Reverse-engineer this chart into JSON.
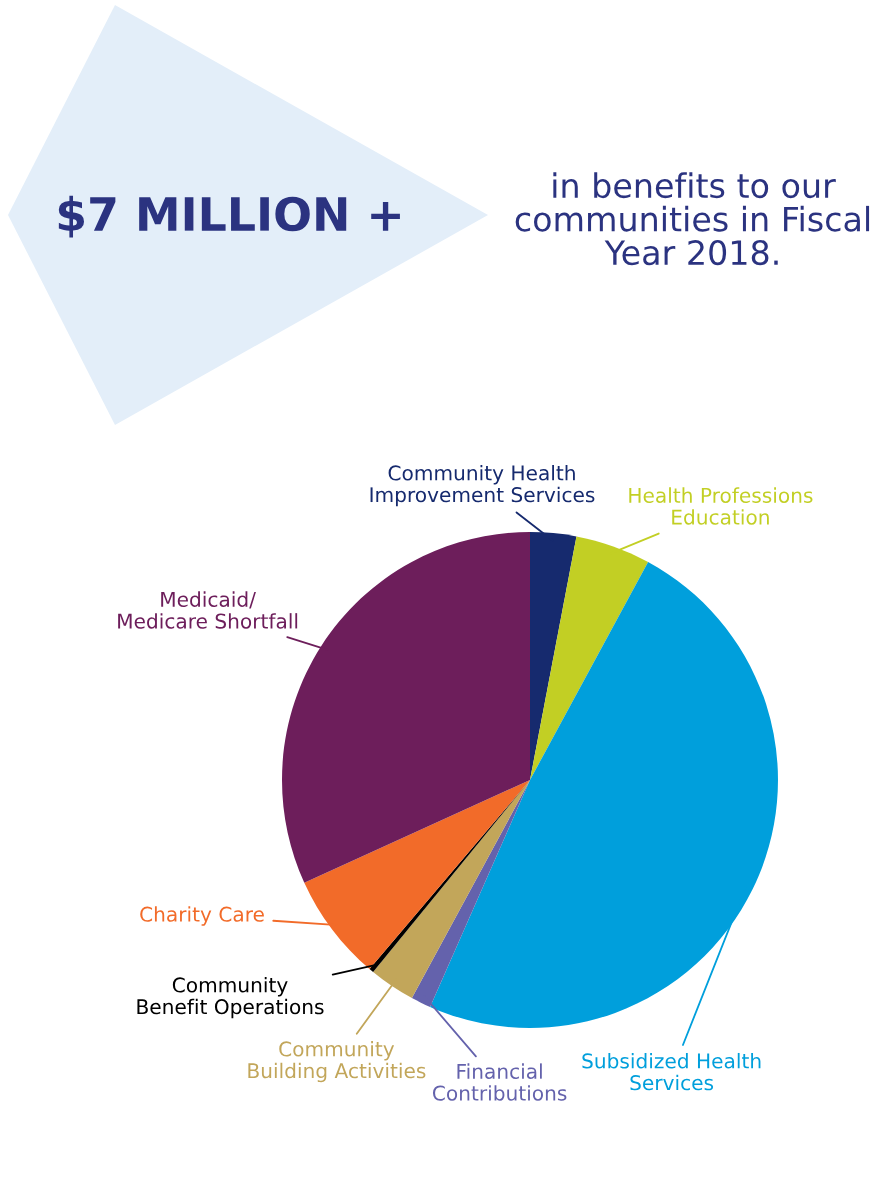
{
  "chart_data": {
    "type": "pie",
    "title": "$7 MILLION +",
    "subtitle": "in benefits to our\ncommunities in Fiscal\nYear 2018.",
    "categories": [
      "Community Health\nImprovement Services",
      "Health Professions\nEducation",
      "Subsidized Health\nServices",
      "Financial\nContributions",
      "Community\nBuilding Activities",
      "Community\nBenefit Operations",
      "Charity Care",
      "Medicaid/\nMedicare Shortfall"
    ],
    "values": [
      3.0,
      4.9,
      48.7,
      1.3,
      3.0,
      0.3,
      7.0,
      31.8
    ],
    "colors": [
      "#162a6e",
      "#c2cf24",
      "#009fdc",
      "#6462ac",
      "#c2a65a",
      "#000000",
      "#f26b29",
      "#6d1e5b"
    ],
    "legend": false
  }
}
